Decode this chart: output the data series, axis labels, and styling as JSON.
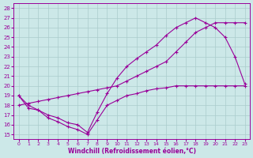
{
  "xlabel": "Windchill (Refroidissement éolien,°C)",
  "bg_color": "#cce8e8",
  "line_color": "#990099",
  "grid_color": "#aacccc",
  "xlim": [
    -0.5,
    23.5
  ],
  "ylim": [
    14.5,
    28.5
  ],
  "xticks": [
    0,
    1,
    2,
    3,
    4,
    5,
    6,
    7,
    8,
    9,
    10,
    11,
    12,
    13,
    14,
    15,
    16,
    17,
    18,
    19,
    20,
    21,
    22,
    23
  ],
  "yticks": [
    15,
    16,
    17,
    18,
    19,
    20,
    21,
    22,
    23,
    24,
    25,
    26,
    27,
    28
  ],
  "line1_x": [
    0,
    1,
    2,
    3,
    4,
    5,
    6,
    7,
    8,
    9,
    10,
    11,
    12,
    13,
    14,
    15,
    16,
    17,
    18,
    19,
    20,
    21,
    22,
    23
  ],
  "line1_y": [
    19.0,
    17.7,
    17.5,
    16.7,
    16.3,
    15.8,
    15.5,
    15.0,
    16.5,
    18.0,
    18.5,
    19.0,
    19.2,
    19.5,
    19.7,
    19.8,
    20.0,
    20.0,
    20.0,
    20.0,
    20.0,
    20.0,
    20.0,
    20.0
  ],
  "line2_x": [
    0,
    1,
    2,
    3,
    4,
    5,
    6,
    7,
    8,
    9,
    10,
    11,
    12,
    13,
    14,
    15,
    16,
    17,
    18,
    19,
    20,
    21,
    22,
    23
  ],
  "line2_y": [
    19.0,
    18.0,
    17.5,
    17.0,
    16.7,
    16.2,
    16.0,
    15.2,
    17.3,
    19.2,
    20.8,
    22.0,
    22.8,
    23.5,
    24.2,
    25.2,
    26.0,
    26.5,
    27.0,
    26.5,
    26.0,
    25.0,
    23.0,
    20.2
  ],
  "line3_x": [
    0,
    1,
    2,
    3,
    4,
    5,
    6,
    7,
    8,
    9,
    10,
    11,
    12,
    13,
    14,
    15,
    16,
    17,
    18,
    19,
    20,
    21,
    22,
    23
  ],
  "line3_y": [
    18.0,
    18.2,
    18.4,
    18.6,
    18.8,
    19.0,
    19.2,
    19.4,
    19.6,
    19.8,
    20.0,
    20.5,
    21.0,
    21.5,
    22.0,
    22.5,
    23.5,
    24.5,
    25.5,
    26.0,
    26.5,
    26.5,
    26.5,
    26.5
  ]
}
